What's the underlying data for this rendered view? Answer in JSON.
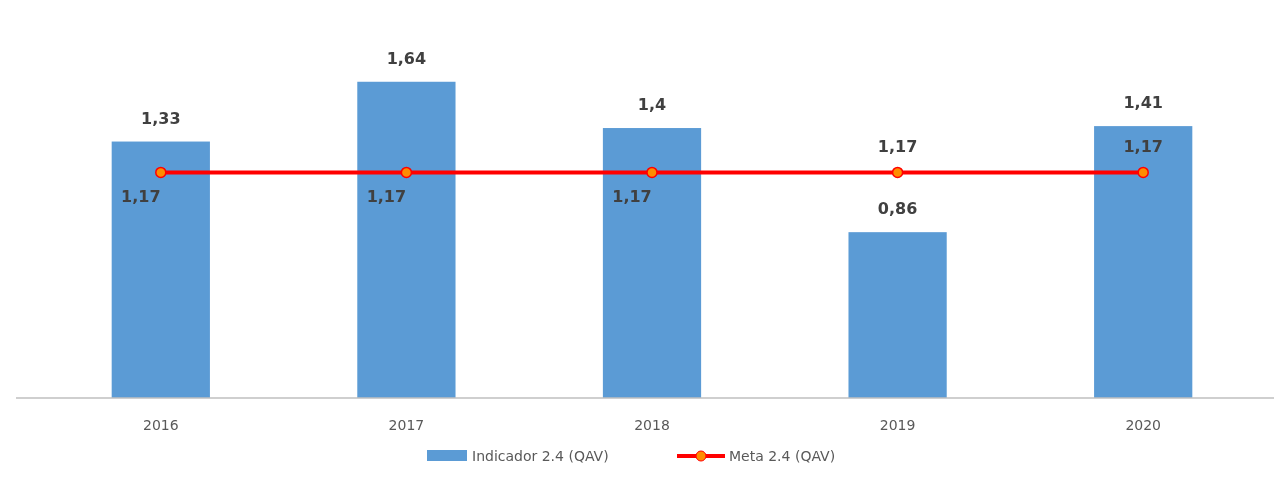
{
  "chart_data": {
    "type": "bar",
    "categories": [
      "2016",
      "2017",
      "2018",
      "2019",
      "2020"
    ],
    "series": [
      {
        "name": "Indicador 2.4 (QAV)",
        "color": "#5b9bd5",
        "values": [
          1.33,
          1.64,
          1.4,
          0.86,
          1.41
        ],
        "value_labels": [
          "1,33",
          "1,64",
          "1,4",
          "0,86",
          "1,41"
        ]
      },
      {
        "name": "Meta 2.4 (QAV)",
        "type": "line",
        "color": "#ff0000",
        "values": [
          1.17,
          1.17,
          1.17,
          1.17,
          1.17
        ],
        "value_labels": [
          "1,17",
          "1,17",
          "1,17",
          "1,17",
          "1,17"
        ]
      }
    ],
    "legend": "bottom",
    "marker": "circle"
  }
}
